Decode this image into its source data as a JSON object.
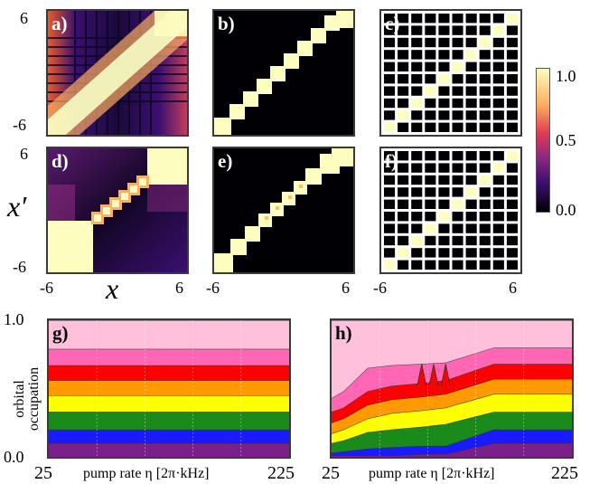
{
  "panels": {
    "a": "a)",
    "b": "b)",
    "c": "c)",
    "d": "d)",
    "e": "e)",
    "f": "f)",
    "g": "g)",
    "h": "h)"
  },
  "ticks": {
    "y_top_a": "6",
    "y_bot_a": "-6",
    "y_top_d": "6",
    "y_bot_d": "-6",
    "x_left_d": "-6",
    "x_right_d": "6",
    "x_left_e": "-6",
    "x_right_e": "6",
    "x_left_f": "-6",
    "x_right_f": "6",
    "g_y_top": "1.0",
    "g_y_bot": "0.0",
    "g_x_left": "25",
    "g_x_right": "225",
    "h_x_left": "25",
    "h_x_right": "225"
  },
  "axis_labels": {
    "x": "x",
    "xprime": "x′",
    "g_ylabel_line1": "orbital",
    "g_ylabel_line2": "occupation",
    "g_xlabel": "pump rate η [2π·kHz]",
    "h_xlabel": "pump rate η [2π·kHz]"
  },
  "colorbar": {
    "ticks": [
      "1.0",
      "0.5",
      "0.0"
    ],
    "colors": [
      "#fcfdbf",
      "#fdae61",
      "#e03c52",
      "#8c2981",
      "#3b0f70",
      "#000004"
    ]
  },
  "chart_data": [
    {
      "type": "area",
      "panel": "g)",
      "ylabel": "orbital occupation",
      "xlabel": "pump rate η [2π·kHz]",
      "xlim": [
        25,
        225
      ],
      "ylim": [
        0,
        1
      ],
      "series_colors": [
        "#7b1f8a",
        "#1a1aff",
        "#1a8a1a",
        "#ffff00",
        "#ff9900",
        "#ff0000",
        "#ff66b3",
        "#ffc0db"
      ],
      "boundaries": [
        0.1,
        0.2,
        0.33,
        0.45,
        0.56,
        0.67,
        0.79,
        1.0
      ]
    },
    {
      "type": "area",
      "panel": "h)",
      "xlabel": "pump rate η [2π·kHz]",
      "xlim": [
        25,
        225
      ],
      "ylim": [
        0,
        1
      ],
      "series_colors": [
        "#7b1f8a",
        "#1a1aff",
        "#1a8a1a",
        "#ffff00",
        "#ff9900",
        "#ff0000",
        "#ff66b3",
        "#ffc0db"
      ],
      "x": [
        25,
        35,
        55,
        75,
        100,
        120,
        160,
        180,
        225
      ],
      "boundaries": [
        [
          0.01,
          0.01,
          0.01,
          0.01,
          0.02,
          0.02,
          0.1,
          0.1,
          0.1
        ],
        [
          0.03,
          0.04,
          0.06,
          0.07,
          0.08,
          0.08,
          0.2,
          0.2,
          0.2
        ],
        [
          0.1,
          0.12,
          0.18,
          0.2,
          0.22,
          0.24,
          0.33,
          0.33,
          0.33
        ],
        [
          0.17,
          0.2,
          0.28,
          0.32,
          0.34,
          0.36,
          0.46,
          0.46,
          0.46
        ],
        [
          0.25,
          0.28,
          0.38,
          0.42,
          0.44,
          0.46,
          0.57,
          0.57,
          0.57
        ],
        [
          0.33,
          0.36,
          0.48,
          0.52,
          0.54,
          0.56,
          0.68,
          0.68,
          0.68
        ],
        [
          0.43,
          0.48,
          0.65,
          0.67,
          0.68,
          0.69,
          0.8,
          0.8,
          0.8
        ],
        [
          1.0,
          1.0,
          1.0,
          1.0,
          1.0,
          1.0,
          1.0,
          1.0,
          1.0
        ]
      ]
    }
  ]
}
